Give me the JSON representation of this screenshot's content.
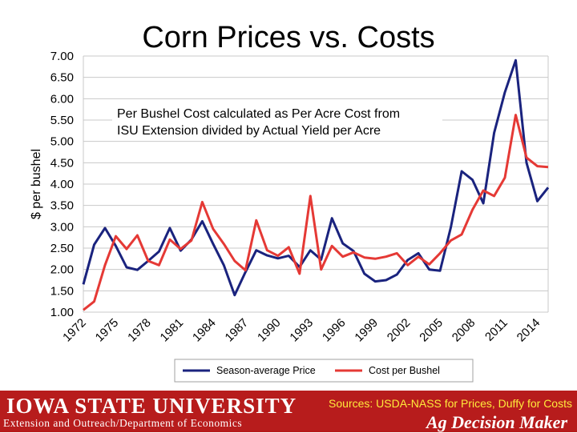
{
  "chart_data": {
    "type": "line",
    "title": "Corn Prices vs. Costs",
    "ylabel": "$ per bushel",
    "xlabel": "",
    "ylim": [
      1.0,
      7.0
    ],
    "yticks": [
      "1.00",
      "1.50",
      "2.00",
      "2.50",
      "3.00",
      "3.50",
      "4.00",
      "4.50",
      "5.00",
      "5.50",
      "6.00",
      "6.50",
      "7.00"
    ],
    "xtick_labels": [
      "1972",
      "1975",
      "1978",
      "1981",
      "1984",
      "1987",
      "1990",
      "1993",
      "1996",
      "1999",
      "2002",
      "2005",
      "2008",
      "2011",
      "2014"
    ],
    "x": [
      1972,
      1973,
      1974,
      1975,
      1976,
      1977,
      1978,
      1979,
      1980,
      1981,
      1982,
      1983,
      1984,
      1985,
      1986,
      1987,
      1988,
      1989,
      1990,
      1991,
      1992,
      1993,
      1994,
      1995,
      1996,
      1997,
      1998,
      1999,
      2000,
      2001,
      2002,
      2003,
      2004,
      2005,
      2006,
      2007,
      2008,
      2009,
      2010,
      2011,
      2012,
      2013,
      2014,
      2015
    ],
    "series": [
      {
        "name": "Season-average Price",
        "color": "#1a237e",
        "values": [
          1.65,
          2.58,
          2.97,
          2.55,
          2.05,
          1.99,
          2.2,
          2.42,
          2.97,
          2.44,
          2.7,
          3.13,
          2.6,
          2.1,
          1.4,
          1.94,
          2.45,
          2.33,
          2.26,
          2.32,
          2.06,
          2.45,
          2.23,
          3.2,
          2.61,
          2.43,
          1.9,
          1.72,
          1.75,
          1.88,
          2.22,
          2.38,
          2.0,
          1.97,
          2.99,
          4.3,
          4.1,
          3.55,
          5.2,
          6.15,
          6.9,
          4.5,
          3.6,
          3.92
        ]
      },
      {
        "name": "Cost per Bushel",
        "color": "#e53935",
        "values": [
          1.05,
          1.25,
          2.1,
          2.78,
          2.48,
          2.8,
          2.2,
          2.1,
          2.7,
          2.48,
          2.68,
          3.58,
          2.95,
          2.6,
          2.2,
          1.98,
          3.15,
          2.45,
          2.32,
          2.52,
          1.9,
          3.72,
          2.0,
          2.55,
          2.3,
          2.4,
          2.28,
          2.25,
          2.3,
          2.38,
          2.1,
          2.3,
          2.12,
          2.38,
          2.68,
          2.82,
          3.4,
          3.85,
          3.72,
          4.15,
          5.62,
          4.62,
          4.42,
          4.4
        ]
      }
    ],
    "annotation": [
      "Per Bushel Cost calculated as Per Acre Cost from",
      "ISU Extension divided by Actual Yield per Acre"
    ],
    "grid": true,
    "legend": "bottom"
  },
  "footer": {
    "university": "IOWA STATE UNIVERSITY",
    "department": "Extension and Outreach/Department of Economics",
    "sources": "Sources: USDA-NASS for Prices, Duffy for Costs",
    "brand": "Ag Decision Maker",
    "color": "#b71c1c"
  }
}
